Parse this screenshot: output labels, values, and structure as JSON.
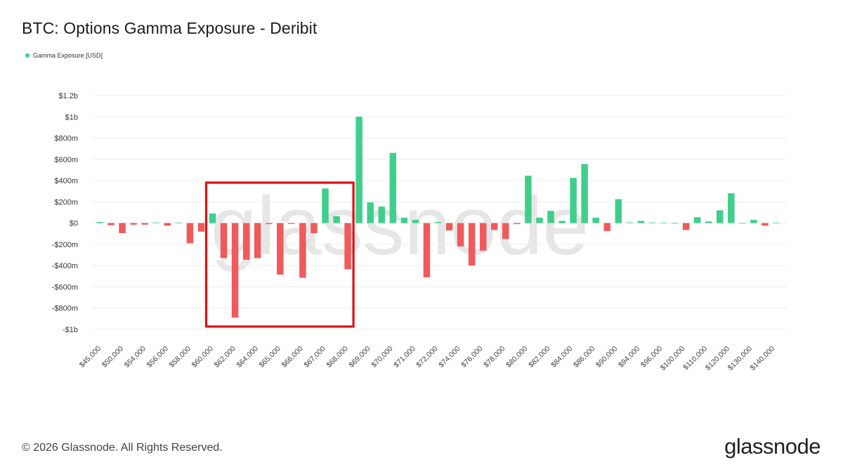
{
  "header": {
    "title": "BTC: Options Gamma Exposure - Deribit"
  },
  "legend": {
    "label": "Gamma Exposure [USD]",
    "color": "#3fcf8c"
  },
  "colors": {
    "positive": "#3fcf8c",
    "negative": "#f05a5a",
    "highlight": "#e01010",
    "grid": "#ececec"
  },
  "footer": {
    "copyright": "© 2026 Glassnode. All Rights Reserved.",
    "logo": "glassnode"
  },
  "watermark": "glassnode",
  "chart_data": {
    "type": "bar",
    "title": "BTC: Options Gamma Exposure - Deribit",
    "xlabel": "",
    "ylabel": "Gamma Exposure [USD]",
    "ylim": [
      -1000000000,
      1200000000
    ],
    "yticks": [
      {
        "value": 1200000000,
        "label": "$1.2b"
      },
      {
        "value": 1000000000,
        "label": "$1b"
      },
      {
        "value": 800000000,
        "label": "$800m"
      },
      {
        "value": 600000000,
        "label": "$600m"
      },
      {
        "value": 400000000,
        "label": "$400m"
      },
      {
        "value": 200000000,
        "label": "$200m"
      },
      {
        "value": 0,
        "label": "$0"
      },
      {
        "value": -200000000,
        "label": "-$200m"
      },
      {
        "value": -400000000,
        "label": "-$400m"
      },
      {
        "value": -600000000,
        "label": "-$600m"
      },
      {
        "value": -800000000,
        "label": "-$800m"
      },
      {
        "value": -1000000000,
        "label": "-$1b"
      }
    ],
    "xtick_labels": [
      "$45,000",
      "$50,000",
      "$54,000",
      "$56,000",
      "$58,000",
      "$60,000",
      "$62,000",
      "$64,000",
      "$65,000",
      "$66,000",
      "$67,000",
      "$68,000",
      "$69,000",
      "$70,000",
      "$71,000",
      "$72,000",
      "$74,000",
      "$76,000",
      "$78,000",
      "$80,000",
      "$82,000",
      "$84,000",
      "$86,000",
      "$90,000",
      "$94,000",
      "$96,000",
      "$100,000",
      "$110,000",
      "$120,000",
      "$130,000",
      "$140,000"
    ],
    "series": [
      {
        "name": "Gamma Exposure [USD]",
        "values": [
          10000000,
          -20000000,
          -95000000,
          -15000000,
          -15000000,
          5000000,
          -25000000,
          3000000,
          -190000000,
          -80000000,
          90000000,
          -330000000,
          -890000000,
          -345000000,
          -330000000,
          -10000000,
          -485000000,
          -8000000,
          -515000000,
          -95000000,
          325000000,
          65000000,
          -435000000,
          1000000000,
          195000000,
          155000000,
          660000000,
          50000000,
          30000000,
          -510000000,
          10000000,
          -70000000,
          -220000000,
          -400000000,
          -260000000,
          -65000000,
          -150000000,
          -10000000,
          445000000,
          50000000,
          115000000,
          20000000,
          425000000,
          555000000,
          50000000,
          -75000000,
          225000000,
          5000000,
          20000000,
          5000000,
          5000000,
          0,
          -65000000,
          55000000,
          15000000,
          120000000,
          280000000,
          0,
          30000000,
          -25000000,
          5000000
        ]
      }
    ],
    "annotations": [
      {
        "type": "highlight-box",
        "from_index": 10,
        "to_index": 22,
        "value_range": [
          -1000000000,
          380000000
        ]
      }
    ]
  }
}
